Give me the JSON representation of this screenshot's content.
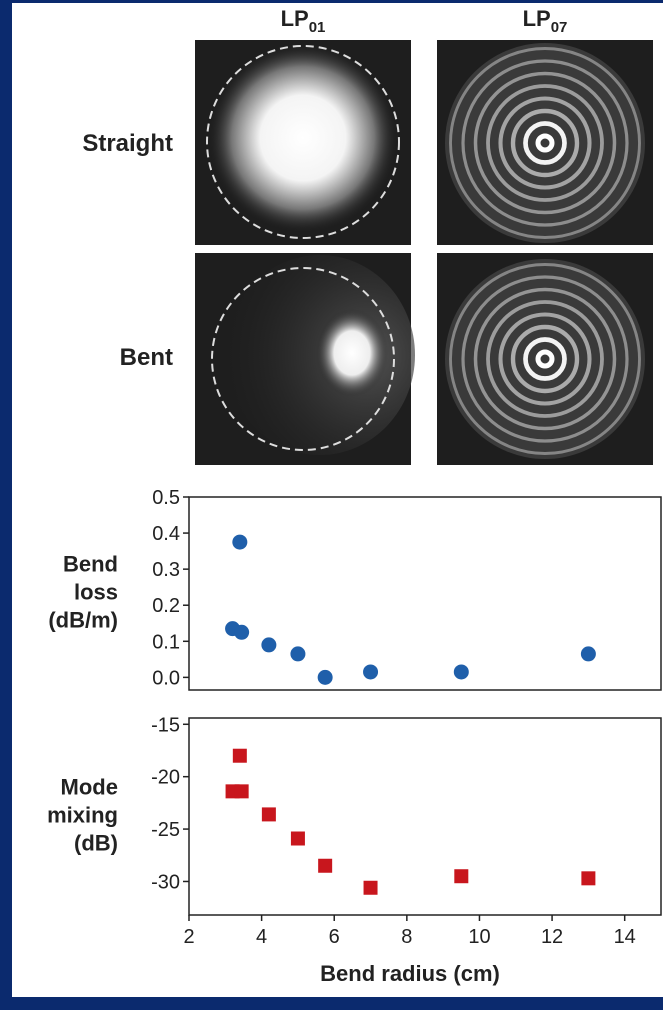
{
  "column_labels": [
    {
      "base": "LP",
      "subscript": "01"
    },
    {
      "base": "LP",
      "subscript": "07"
    }
  ],
  "row_labels": [
    "Straight",
    "Bent"
  ],
  "chart_data": [
    {
      "type": "scatter",
      "ylabel": [
        "Bend",
        "loss",
        "(dB/m)"
      ],
      "color": "#1f5faa",
      "marker": "circle",
      "x": [
        3.2,
        3.45,
        3.4,
        4.2,
        5,
        5.75,
        7,
        9.5,
        13
      ],
      "values": [
        0.135,
        0.125,
        0.375,
        0.09,
        0.065,
        0,
        0.015,
        0.015,
        0.065
      ],
      "xlim": [
        2,
        15
      ],
      "ylim": [
        -0.035,
        0.5
      ],
      "yticks": [
        0.5,
        0.4,
        0.3,
        0.2,
        0.1,
        {
          "value": 0,
          "label": "0.0"
        }
      ]
    },
    {
      "type": "scatter",
      "ylabel": [
        "Mode",
        "mixing",
        "(dB)"
      ],
      "xlabel": "Bend radius (cm)",
      "color": "#c8161d",
      "marker": "square",
      "x": [
        3.2,
        3.45,
        3.4,
        4.2,
        5,
        5.75,
        7,
        9.5,
        13
      ],
      "values": [
        -21.4,
        -21.4,
        -18,
        -23.6,
        -25.9,
        -28.5,
        -30.6,
        -29.5,
        -29.7
      ],
      "xlim": [
        2,
        15
      ],
      "ylim": [
        -33.2,
        -14.4
      ],
      "xticks": [
        2,
        4,
        6,
        8,
        10,
        12,
        14
      ],
      "yticks": [
        -15,
        -20,
        -25,
        -30
      ]
    }
  ]
}
